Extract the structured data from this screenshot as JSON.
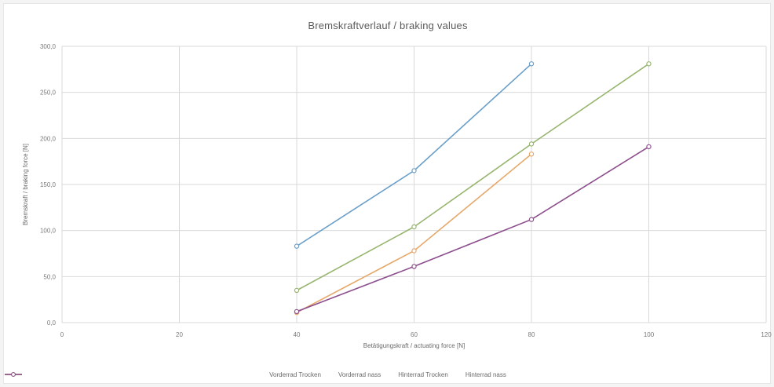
{
  "chart_data": {
    "type": "line",
    "title": "Bremskraftverlauf / braking values",
    "xlabel": "Betätigungskraft / actuating force [N]",
    "ylabel": "Bremskraft / braking force [N]",
    "xlim": [
      0,
      120
    ],
    "ylim": [
      0,
      300
    ],
    "x_ticks": [
      "0",
      "20",
      "40",
      "60",
      "80",
      "100",
      "120"
    ],
    "y_ticks": [
      "0,0",
      "50,0",
      "100,0",
      "150,0",
      "200,0",
      "250,0",
      "300,0"
    ],
    "grid": "vertical and horizontal",
    "legend_position": "bottom",
    "series": [
      {
        "name": "Vorderrad Trocken",
        "color": "#6a9fc9",
        "x": [
          40,
          60,
          80
        ],
        "y": [
          83,
          165,
          281
        ]
      },
      {
        "name": "Vorderrad nass",
        "color": "#97b56e",
        "x": [
          40,
          60,
          80,
          100
        ],
        "y": [
          35,
          104,
          194,
          281
        ]
      },
      {
        "name": "Hinterrad Trocken",
        "color": "#e6a86a",
        "x": [
          40,
          60,
          80
        ],
        "y": [
          11,
          78,
          183
        ]
      },
      {
        "name": "Hinterrad nass",
        "color": "#8c4e8c",
        "x": [
          40,
          60,
          80,
          100
        ],
        "y": [
          12,
          61,
          112,
          191
        ]
      }
    ]
  }
}
